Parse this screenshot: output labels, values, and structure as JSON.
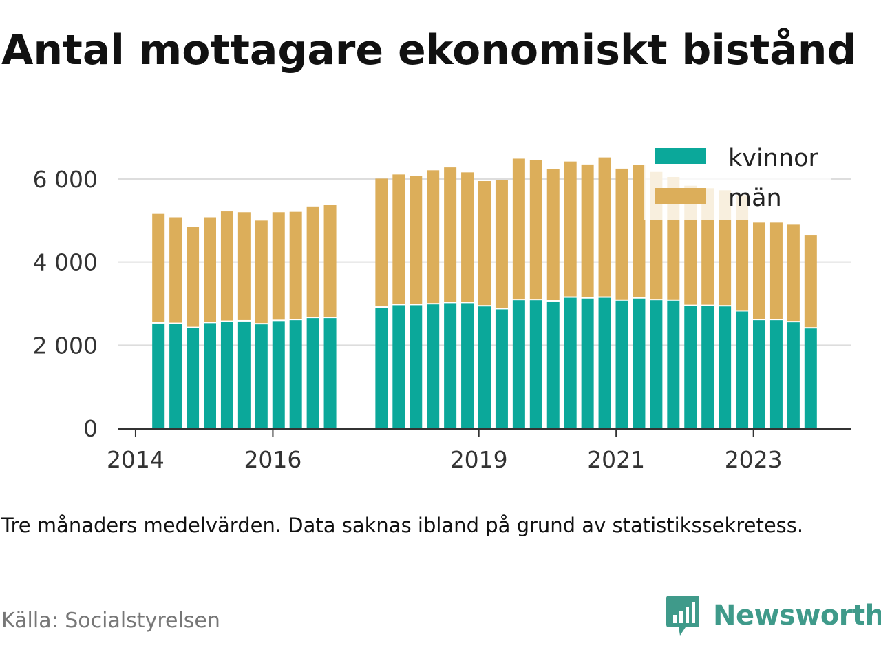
{
  "title": "Antal mottagare ekonomiskt bistånd",
  "note": "Tre månaders medelvärden. Data saknas ibland på grund av statistikssekretess.",
  "source": "Källa: Socialstyrelsen",
  "brand": "Newsworthy",
  "colors": {
    "kvinnor": "#0ba89a",
    "man": "#dcae5a",
    "grid": "#dddddd",
    "brand": "#3f9a8a"
  },
  "chart_data": {
    "type": "bar",
    "stacked": true,
    "y_ticks": [
      0,
      2000,
      4000,
      6000
    ],
    "y_tick_labels": [
      "0",
      "2 000",
      "4 000",
      "6 000"
    ],
    "ylim": [
      0,
      6600
    ],
    "x_ticks": [
      "2014",
      "2016",
      "2019",
      "2021",
      "2023"
    ],
    "xlim": [
      "2013-10",
      "2024-06"
    ],
    "grid": true,
    "legend_position": "top-right",
    "series": [
      {
        "name": "kvinnor",
        "values": [
          2520,
          2510,
          2410,
          2530,
          2560,
          2570,
          2500,
          2580,
          2600,
          2650,
          2650,
          2900,
          2960,
          2960,
          2980,
          3010,
          3010,
          2930,
          2860,
          3080,
          3080,
          3050,
          3140,
          3120,
          3140,
          3070,
          3120,
          3080,
          3070,
          2940,
          2940,
          2930,
          2810,
          2600,
          2600,
          2550,
          2400
        ]
      },
      {
        "name": "män",
        "values": [
          2640,
          2570,
          2440,
          2550,
          2660,
          2630,
          2500,
          2620,
          2610,
          2690,
          2720,
          3110,
          3150,
          3110,
          3230,
          3270,
          3150,
          3020,
          3120,
          3410,
          3380,
          3190,
          3280,
          3230,
          3380,
          3180,
          3220,
          3090,
          2980,
          2900,
          2840,
          2800,
          2800,
          2350,
          2350,
          2350,
          2240
        ]
      }
    ],
    "x": [
      "2014-05",
      "2014-08",
      "2014-11",
      "2015-02",
      "2015-05",
      "2015-08",
      "2015-11",
      "2016-02",
      "2016-05",
      "2016-08",
      "2016-11",
      "2017-08",
      "2017-11",
      "2018-02",
      "2018-05",
      "2018-08",
      "2018-11",
      "2019-02",
      "2019-05",
      "2019-08",
      "2019-11",
      "2020-02",
      "2020-05",
      "2020-08",
      "2020-11",
      "2021-02",
      "2021-05",
      "2021-08",
      "2021-11",
      "2022-02",
      "2022-05",
      "2022-08",
      "2022-11",
      "2023-02",
      "2023-05",
      "2023-08",
      "2023-11"
    ]
  }
}
